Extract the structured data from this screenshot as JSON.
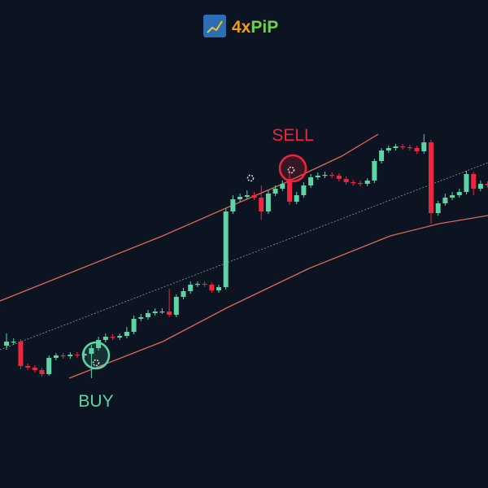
{
  "brand": [
    "4x",
    "PiP"
  ],
  "chart_data": {
    "type": "candlestick",
    "background": "#0b1420",
    "up_color": "#5ed3a6",
    "down_color": "#f0243c",
    "ylim": [
      0,
      600
    ],
    "xlim": [
      -0.92,
      68.05
    ],
    "categories": [
      null,
      null,
      null,
      null,
      null,
      null,
      null,
      null,
      null,
      null,
      null,
      null,
      null,
      null,
      null,
      null,
      null,
      null,
      null,
      null,
      null,
      null,
      null,
      null,
      null,
      null,
      null,
      null,
      null,
      null,
      null,
      null,
      null,
      null,
      null,
      null,
      null,
      null,
      null,
      null,
      null,
      null,
      null,
      null,
      null,
      null,
      null,
      null,
      null,
      null,
      null,
      null,
      null,
      null,
      null,
      null,
      null,
      null,
      null,
      null,
      null,
      null,
      null,
      null,
      null,
      null,
      null,
      null,
      null
    ],
    "open": [
      175,
      180,
      180,
      150,
      148,
      145,
      140,
      160,
      163,
      162,
      164,
      163,
      165,
      172,
      182,
      186,
      185,
      187,
      192,
      208,
      210,
      215,
      217,
      217,
      213,
      235,
      242,
      250,
      251,
      250,
      243,
      247,
      340,
      355,
      358,
      360,
      357,
      340,
      362,
      368,
      380,
      352,
      360,
      372,
      382,
      384,
      385,
      384,
      380,
      376,
      375,
      374,
      378,
      402,
      415,
      418,
      420,
      419,
      418,
      414,
      425,
      338,
      350,
      357,
      360,
      364,
      386,
      368,
      374
    ],
    "high": [
      190,
      184,
      183,
      153,
      151,
      148,
      163,
      166,
      166,
      167,
      167,
      170,
      176,
      186,
      190,
      189,
      190,
      198,
      212,
      214,
      219,
      221,
      221,
      245,
      238,
      246,
      254,
      254,
      254,
      253,
      250,
      344,
      360,
      362,
      366,
      364,
      372,
      366,
      372,
      378,
      390,
      364,
      376,
      386,
      388,
      389,
      388,
      387,
      383,
      379,
      378,
      381,
      405,
      418,
      421,
      423,
      423,
      422,
      421,
      435,
      428,
      353,
      362,
      364,
      368,
      390,
      389,
      378,
      377
    ],
    "low": [
      170,
      176,
      146,
      145,
      142,
      137,
      138,
      157,
      159,
      159,
      160,
      160,
      135,
      169,
      179,
      182,
      182,
      184,
      189,
      205,
      207,
      212,
      214,
      210,
      210,
      232,
      239,
      247,
      247,
      240,
      240,
      244,
      337,
      352,
      355,
      354,
      330,
      337,
      359,
      365,
      348,
      349,
      357,
      369,
      379,
      381,
      381,
      377,
      373,
      372,
      371,
      371,
      375,
      399,
      412,
      415,
      416,
      415,
      411,
      411,
      325,
      335,
      347,
      354,
      357,
      361,
      360,
      365,
      369
    ],
    "close": [
      180,
      180,
      150,
      148,
      145,
      140,
      160,
      163,
      162,
      164,
      163,
      165,
      172,
      182,
      186,
      185,
      187,
      192,
      208,
      210,
      215,
      217,
      217,
      213,
      235,
      242,
      250,
      251,
      250,
      243,
      247,
      340,
      355,
      358,
      360,
      357,
      340,
      362,
      368,
      374,
      352,
      360,
      372,
      382,
      384,
      385,
      384,
      380,
      376,
      375,
      374,
      378,
      402,
      415,
      418,
      420,
      419,
      418,
      414,
      425,
      338,
      350,
      357,
      360,
      364,
      386,
      368,
      374,
      372
    ],
    "bands": [
      {
        "color": "#e0675a",
        "dashed": false,
        "x": [
          -0.92,
          10.57,
          22.07,
          31.26,
          39.31,
          47.36,
          52.53
        ],
        "values": [
          230,
          270,
          310,
          345,
          375,
          408,
          435
        ]
      },
      {
        "color": "#e0675a",
        "dashed": false,
        "x": [
          8.85,
          22.07,
          31.26,
          42.76,
          54.25,
          61.15,
          68.05
        ],
        "values": [
          135,
          180,
          222,
          270,
          310,
          325,
          335
        ]
      },
      {
        "color": "#8a99a8",
        "dashed": true,
        "x": [
          -0.92,
          68.05
        ],
        "values": [
          170,
          400
        ]
      }
    ],
    "annotations": [
      {
        "text": "BUY",
        "color": "#5ed3a6"
      },
      {
        "text": "SELL",
        "color": "#f0243c"
      }
    ]
  }
}
